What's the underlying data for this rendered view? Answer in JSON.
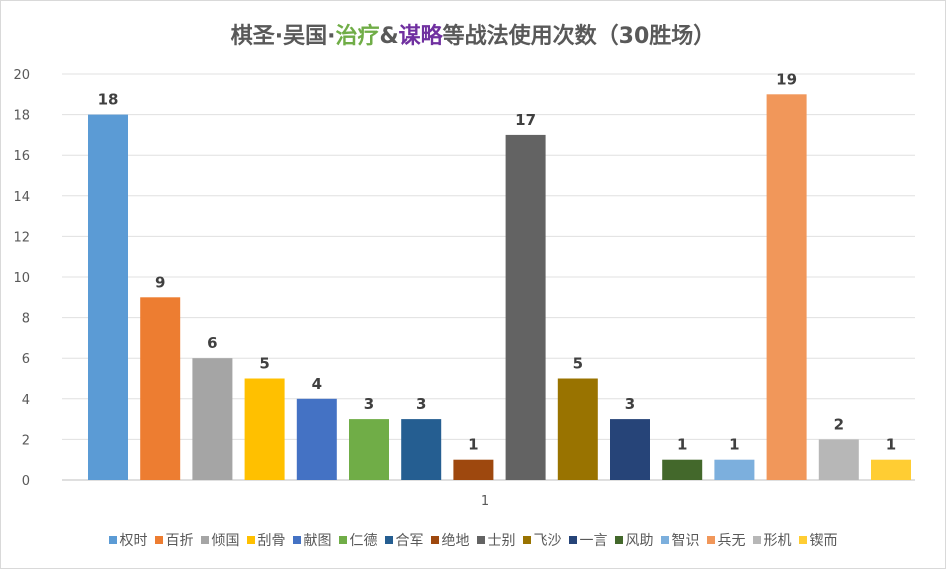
{
  "title": {
    "part1": "棋圣·吴国·",
    "part2": "治疗",
    "part3": "&",
    "part4": "谋略",
    "part5": "等战法使用次数（30胜场）",
    "color_green": "#70ad47",
    "color_purple": "#7030a0"
  },
  "chart_data": {
    "type": "bar",
    "title": "棋圣·吴国·治疗&谋略等战法使用次数（30胜场）",
    "categories": [
      "1"
    ],
    "ylim": [
      0,
      20
    ],
    "yticks": [
      0,
      2,
      4,
      6,
      8,
      10,
      12,
      14,
      16,
      18,
      20
    ],
    "grid": true,
    "legend_position": "bottom",
    "series": [
      {
        "name": "权时",
        "values": [
          18
        ],
        "color": "#5b9bd5"
      },
      {
        "name": "百折",
        "values": [
          9
        ],
        "color": "#ed7d31"
      },
      {
        "name": "倾国",
        "values": [
          6
        ],
        "color": "#a5a5a5"
      },
      {
        "name": "刮骨",
        "values": [
          5
        ],
        "color": "#ffc000"
      },
      {
        "name": "献图",
        "values": [
          4
        ],
        "color": "#4472c4"
      },
      {
        "name": "仁德",
        "values": [
          3
        ],
        "color": "#70ad47"
      },
      {
        "name": "合军",
        "values": [
          3
        ],
        "color": "#255e91"
      },
      {
        "name": "绝地",
        "values": [
          1
        ],
        "color": "#9e480e"
      },
      {
        "name": "士别",
        "values": [
          17
        ],
        "color": "#636363"
      },
      {
        "name": "飞沙",
        "values": [
          5
        ],
        "color": "#997300"
      },
      {
        "name": "一言",
        "values": [
          3
        ],
        "color": "#264478"
      },
      {
        "name": "风助",
        "values": [
          1
        ],
        "color": "#43682b"
      },
      {
        "name": "智识",
        "values": [
          1
        ],
        "color": "#7cafdd"
      },
      {
        "name": "兵无",
        "values": [
          19
        ],
        "color": "#f1975a"
      },
      {
        "name": "形机",
        "values": [
          2
        ],
        "color": "#b7b7b7"
      },
      {
        "name": "锲而",
        "values": [
          1
        ],
        "color": "#ffcd33"
      }
    ]
  }
}
